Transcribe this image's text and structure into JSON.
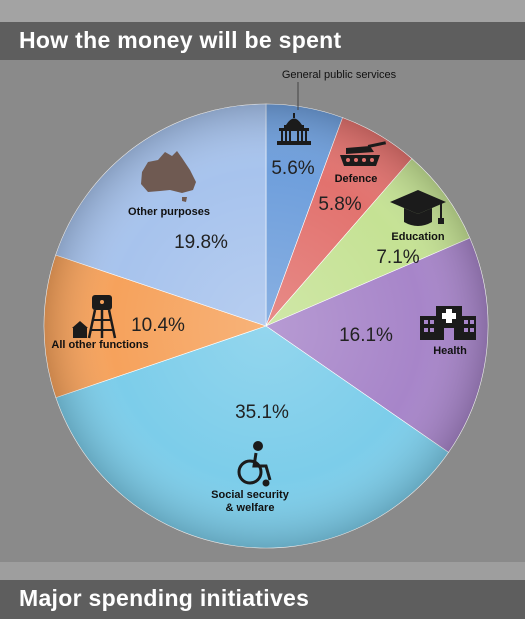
{
  "header": {
    "title": "How the money will be spent"
  },
  "footer": {
    "title": "Major spending initiatives"
  },
  "chart_data": {
    "type": "pie",
    "title": "How the money will be spent",
    "start_angle_deg": 0,
    "direction": "clockwise",
    "legend": "none",
    "slices": [
      {
        "label": "General public services",
        "value": 5.6,
        "value_label": "5.6%",
        "color": "#6f9fdc",
        "icon": "capitol-building-icon"
      },
      {
        "label": "Defence",
        "value": 5.8,
        "value_label": "5.8%",
        "color": "#e2726e",
        "icon": "tank-icon"
      },
      {
        "label": "Education",
        "value": 7.1,
        "value_label": "7.1%",
        "color": "#c5e294",
        "icon": "graduation-cap-icon"
      },
      {
        "label": "Health",
        "value": 16.1,
        "value_label": "16.1%",
        "color": "#a785c9",
        "icon": "hospital-icon"
      },
      {
        "label": "Social security & welfare",
        "label_lines": [
          "Social security",
          "& welfare"
        ],
        "value": 35.1,
        "value_label": "35.1%",
        "color": "#7ccdea",
        "icon": "wheelchair-icon"
      },
      {
        "label": "All other functions",
        "value": 10.4,
        "value_label": "10.4%",
        "color": "#f6a25c",
        "icon": "water-tower-icon"
      },
      {
        "label": "Other purposes",
        "value": 19.8,
        "value_label": "19.8%",
        "color": "#a7c3ed",
        "icon": "australia-map-icon"
      }
    ]
  }
}
